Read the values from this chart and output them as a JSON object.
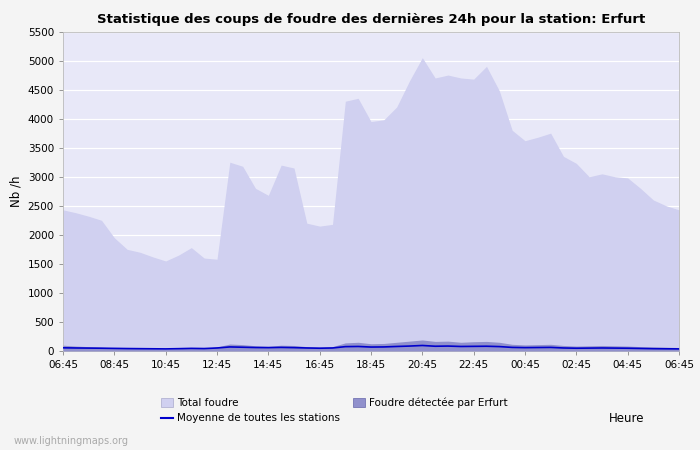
{
  "title": "Statistique des coups de foudre des dernières 24h pour la station: Erfurt",
  "xlabel": "Heure",
  "ylabel": "Nb /h",
  "ylim": [
    0,
    5500
  ],
  "yticks": [
    0,
    500,
    1000,
    1500,
    2000,
    2500,
    3000,
    3500,
    4000,
    4500,
    5000,
    5500
  ],
  "xtick_labels": [
    "06:45",
    "08:45",
    "10:45",
    "12:45",
    "14:45",
    "16:45",
    "18:45",
    "20:45",
    "22:45",
    "00:45",
    "02:45",
    "04:45",
    "06:45"
  ],
  "xtick_positions": [
    0,
    4,
    8,
    12,
    16,
    20,
    24,
    28,
    32,
    36,
    40,
    44,
    48
  ],
  "background_color": "#f4f4f4",
  "plot_bg_color": "#e8e8f8",
  "grid_color": "#ffffff",
  "watermark": "www.lightningmaps.org",
  "total_foudre_color": "#d0d0f0",
  "erfurt_color": "#9090cc",
  "moyenne_color": "#0000cc",
  "legend_total": "Total foudre",
  "legend_erfurt": "Foudre détectée par Erfurt",
  "legend_moyenne": "Moyenne de toutes les stations",
  "total_foudre": [
    2430,
    2380,
    2320,
    2250,
    1950,
    1750,
    1700,
    1620,
    1550,
    1650,
    1780,
    1600,
    1580,
    3250,
    3180,
    2800,
    2680,
    3200,
    3150,
    2200,
    2150,
    2180,
    4300,
    4350,
    3950,
    3980,
    4200,
    4650,
    5050,
    4700,
    4750,
    4700,
    4680,
    4900,
    4480,
    3800,
    3620,
    3680,
    3750,
    3350,
    3230,
    3000,
    3050,
    3000,
    2980,
    2800,
    2600,
    2500,
    2430
  ],
  "erfurt_detected": [
    100,
    85,
    75,
    65,
    55,
    45,
    42,
    38,
    32,
    40,
    50,
    45,
    70,
    120,
    110,
    90,
    80,
    100,
    95,
    75,
    65,
    75,
    140,
    150,
    125,
    130,
    150,
    170,
    190,
    165,
    170,
    150,
    160,
    165,
    150,
    115,
    105,
    110,
    115,
    95,
    85,
    90,
    95,
    90,
    85,
    75,
    70,
    65,
    60
  ],
  "moyenne_line": [
    55,
    52,
    50,
    48,
    45,
    42,
    40,
    38,
    36,
    40,
    45,
    42,
    52,
    70,
    65,
    60,
    58,
    62,
    58,
    52,
    48,
    52,
    75,
    78,
    68,
    70,
    78,
    85,
    95,
    82,
    85,
    78,
    80,
    82,
    76,
    62,
    58,
    60,
    62,
    52,
    48,
    50,
    52,
    50,
    48,
    44,
    40,
    38,
    36
  ]
}
